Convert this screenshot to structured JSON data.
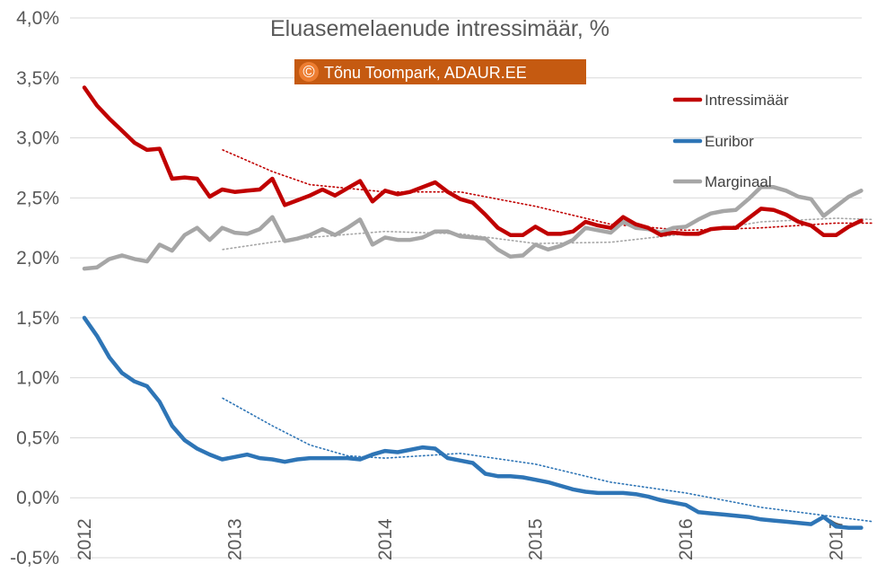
{
  "chart_data": {
    "type": "line",
    "title": "Eluasemelaenude intressimäär, %",
    "watermark": {
      "symbol": "©",
      "text": "Tõnu Toompark, ADAUR.EE",
      "color": "#c55a11",
      "symbol_color": "#ed7d31"
    },
    "y_ticks": [
      "4,0%",
      "3,5%",
      "3,0%",
      "2,5%",
      "2,0%",
      "1,5%",
      "1,0%",
      "0,5%",
      "0,0%",
      "-0,5%"
    ],
    "x_ticks": [
      "2012",
      "2013",
      "2014",
      "2015",
      "2016",
      "2017"
    ],
    "ylim": [
      -0.5,
      4.0
    ],
    "xlim": [
      2012.0,
      2017.25
    ],
    "gridlines": "horizontal",
    "legend_position": "right",
    "series": [
      {
        "name": "Intressimäär",
        "color": "#c00000",
        "values": [
          3.42,
          3.27,
          3.16,
          3.06,
          2.96,
          2.9,
          2.91,
          2.66,
          2.67,
          2.66,
          2.51,
          2.57,
          2.55,
          2.56,
          2.57,
          2.66,
          2.44,
          2.48,
          2.52,
          2.57,
          2.52,
          2.58,
          2.64,
          2.47,
          2.56,
          2.53,
          2.55,
          2.59,
          2.63,
          2.55,
          2.49,
          2.46,
          2.36,
          2.25,
          2.19,
          2.19,
          2.26,
          2.2,
          2.2,
          2.22,
          2.3,
          2.27,
          2.25,
          2.34,
          2.28,
          2.25,
          2.19,
          2.21,
          2.2,
          2.2,
          2.24,
          2.25,
          2.25,
          2.33,
          2.41,
          2.4,
          2.36,
          2.3,
          2.27,
          2.19,
          2.19,
          2.26,
          2.31
        ]
      },
      {
        "name": "Euribor",
        "color": "#2e75b6",
        "values": [
          1.5,
          1.35,
          1.17,
          1.04,
          0.97,
          0.93,
          0.8,
          0.6,
          0.48,
          0.41,
          0.36,
          0.32,
          0.34,
          0.36,
          0.33,
          0.32,
          0.3,
          0.32,
          0.33,
          0.33,
          0.33,
          0.33,
          0.32,
          0.36,
          0.39,
          0.38,
          0.4,
          0.42,
          0.41,
          0.33,
          0.31,
          0.29,
          0.2,
          0.18,
          0.18,
          0.17,
          0.15,
          0.13,
          0.1,
          0.07,
          0.05,
          0.04,
          0.04,
          0.04,
          0.03,
          0.01,
          -0.02,
          -0.04,
          -0.06,
          -0.12,
          -0.13,
          -0.14,
          -0.15,
          -0.16,
          -0.18,
          -0.19,
          -0.2,
          -0.21,
          -0.22,
          -0.16,
          -0.24,
          -0.25,
          -0.25
        ]
      },
      {
        "name": "Marginaal",
        "color": "#a6a6a6",
        "values": [
          1.91,
          1.92,
          1.99,
          2.02,
          1.99,
          1.97,
          2.11,
          2.06,
          2.19,
          2.25,
          2.15,
          2.25,
          2.21,
          2.2,
          2.24,
          2.34,
          2.14,
          2.16,
          2.19,
          2.24,
          2.19,
          2.25,
          2.32,
          2.11,
          2.17,
          2.15,
          2.15,
          2.17,
          2.22,
          2.22,
          2.18,
          2.17,
          2.16,
          2.07,
          2.01,
          2.02,
          2.11,
          2.07,
          2.1,
          2.15,
          2.25,
          2.23,
          2.21,
          2.3,
          2.25,
          2.24,
          2.21,
          2.25,
          2.26,
          2.32,
          2.37,
          2.39,
          2.4,
          2.49,
          2.59,
          2.59,
          2.56,
          2.51,
          2.49,
          2.35,
          2.43,
          2.51,
          2.56
        ]
      }
    ],
    "trendlines": [
      {
        "series": "Intressimäär",
        "color": "#c00000",
        "style": "dotted",
        "x": [
          2012.92,
          2013.25,
          2013.5,
          2014.0,
          2014.5,
          2015.0,
          2015.5,
          2016.0,
          2016.5,
          2017.0,
          2017.25
        ],
        "y": [
          2.9,
          2.72,
          2.61,
          2.55,
          2.55,
          2.43,
          2.28,
          2.23,
          2.25,
          2.29,
          2.29
        ]
      },
      {
        "series": "Euribor",
        "color": "#2e75b6",
        "style": "dotted",
        "x": [
          2012.92,
          2013.25,
          2013.5,
          2013.75,
          2014.0,
          2014.5,
          2015.0,
          2015.5,
          2016.0,
          2016.5,
          2017.0,
          2017.25
        ],
        "y": [
          0.83,
          0.6,
          0.44,
          0.35,
          0.33,
          0.37,
          0.28,
          0.13,
          0.04,
          -0.08,
          -0.16,
          -0.2
        ]
      },
      {
        "series": "Marginaal",
        "color": "#a6a6a6",
        "style": "dotted",
        "x": [
          2012.92,
          2013.25,
          2013.5,
          2014.0,
          2014.5,
          2015.0,
          2015.5,
          2016.0,
          2016.5,
          2017.0,
          2017.25
        ],
        "y": [
          2.07,
          2.13,
          2.17,
          2.22,
          2.2,
          2.12,
          2.13,
          2.2,
          2.3,
          2.33,
          2.32
        ]
      }
    ]
  }
}
